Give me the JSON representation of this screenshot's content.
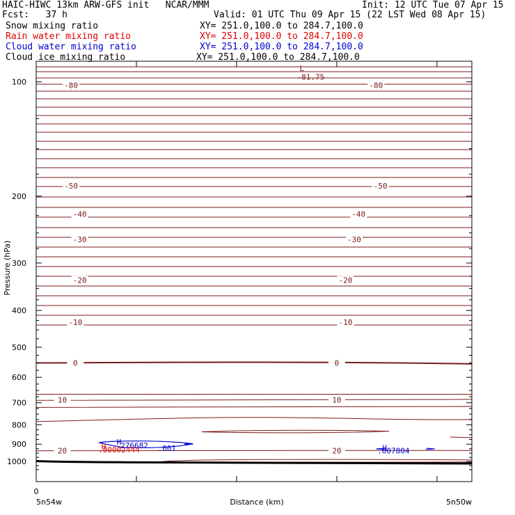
{
  "header": {
    "title": "HAIC-HIWC 13km ARW-GFS init   NCAR/MMM",
    "init": "Init: 12 UTC Tue 07 Apr 15",
    "fcst": "Fcst:   37 h",
    "valid": "Valid: 01 UTC Thu 09 Apr 15 (22 LST Wed 08 Apr 15)"
  },
  "legend": [
    {
      "name": "Snow mixing ratio",
      "xy": "XY= 251.0,100.0 to 284.7,100.0",
      "color": "#000000"
    },
    {
      "name": "Rain water mixing ratio",
      "xy": "XY= 251.0,100.0 to 284.7,100.0",
      "color": "#e00000"
    },
    {
      "name": "Cloud water mixing ratio",
      "xy": "XY= 251.0,100.0 to 284.7,100.0",
      "color": "#0000d0"
    },
    {
      "name": "Cloud ice mixing ratio",
      "xy": "XY= 251.0,100.0 to 284.7,100.0",
      "color": "#000000"
    }
  ],
  "colors": {
    "temperature": "#7a1a1a",
    "snow": "#000000",
    "rain": "#e00000",
    "cloud": "#0000d0",
    "axes": "#000000"
  },
  "chart_data": {
    "type": "contour",
    "ylabel": "Pressure (hPa)",
    "xlabel": "Distance (km)",
    "y_scale": "log",
    "ylim": [
      1050,
      70
    ],
    "yticks": [
      100,
      200,
      300,
      400,
      500,
      600,
      700,
      800,
      900,
      1000
    ],
    "x_tick_label": "0",
    "x_end_labels": [
      "5n54w",
      "5n50w"
    ],
    "temperature_labels": [
      {
        "text": "-80",
        "p": 102,
        "x": 0.08
      },
      {
        "text": "-80",
        "p": 102,
        "x": 0.78
      },
      {
        "text": "-50",
        "p": 188,
        "x": 0.08
      },
      {
        "text": "-50",
        "p": 188,
        "x": 0.79
      },
      {
        "text": "-40",
        "p": 223,
        "x": 0.1
      },
      {
        "text": "-40",
        "p": 223,
        "x": 0.74
      },
      {
        "text": "-30",
        "p": 260,
        "x": 0.1
      },
      {
        "text": "-30",
        "p": 260,
        "x": 0.73
      },
      {
        "text": "-20",
        "p": 333,
        "x": 0.1
      },
      {
        "text": "-20",
        "p": 333,
        "x": 0.71
      },
      {
        "text": "-10",
        "p": 430,
        "x": 0.09
      },
      {
        "text": "-10",
        "p": 430,
        "x": 0.71
      },
      {
        "text": "0",
        "p": 550,
        "x": 0.09
      },
      {
        "text": "0",
        "p": 550,
        "x": 0.69
      },
      {
        "text": "10",
        "p": 688,
        "x": 0.06
      },
      {
        "text": "10",
        "p": 688,
        "x": 0.69
      },
      {
        "text": "20",
        "p": 935,
        "x": 0.06
      },
      {
        "text": "20",
        "p": 935,
        "x": 0.69
      }
    ],
    "annotations": [
      {
        "text": "L",
        "p": 92,
        "x": 0.61,
        "color": "#7a1a1a"
      },
      {
        "text": "-81.75",
        "p": 97,
        "x": 0.63,
        "color": "#7a1a1a"
      },
      {
        "text": "H",
        "p": 888,
        "x": 0.19,
        "color": "#0000d0"
      },
      {
        "text": ".276682",
        "p": 906,
        "x": 0.22,
        "color": "#0000d0"
      },
      {
        "text": ".001",
        "p": 922,
        "x": 0.3,
        "color": "#0000d0"
      },
      {
        "text": "H",
        "p": 912,
        "x": 0.155,
        "color": "#e00000"
      },
      {
        "text": ".00002444",
        "p": 930,
        "x": 0.19,
        "color": "#e00000"
      },
      {
        "text": "H",
        "p": 920,
        "x": 0.8,
        "color": "#0000d0"
      },
      {
        "text": ".007804",
        "p": 935,
        "x": 0.82,
        "color": "#0000d0"
      }
    ]
  }
}
